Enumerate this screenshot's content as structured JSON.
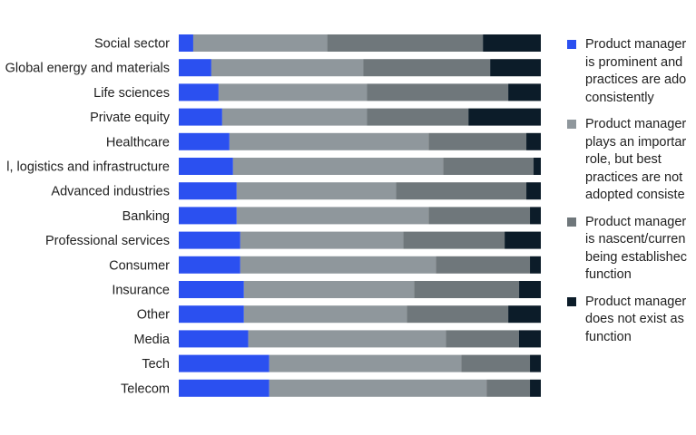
{
  "colors": {
    "prominent": "#2b50f0",
    "important": "#8f979c",
    "nascent": "#6f777b",
    "none": "#0c1c29"
  },
  "chart_data": {
    "type": "bar",
    "orientation": "horizontal",
    "stacked": true,
    "normalized": true,
    "categories": [
      "Social sector",
      "Global energy and materials",
      "Life sciences",
      "Private equity",
      "Healthcare",
      "l, logistics and infrastructure",
      "Advanced industries",
      "Banking",
      "Professional services",
      "Consumer",
      "Insurance",
      "Other",
      "Media",
      "Tech",
      "Telecom"
    ],
    "series": [
      {
        "name": "Product manager\nis prominent and\npractices are ado\nconsistently",
        "color": "#2b50f0",
        "values": [
          4,
          9,
          11,
          12,
          14,
          15,
          16,
          16,
          17,
          17,
          18,
          18,
          19,
          25,
          25
        ]
      },
      {
        "name": "Product manager\nplays an importar\nrole, but best\npractices are not\nadopted consiste",
        "color": "#8f979c",
        "values": [
          37,
          42,
          41,
          40,
          55,
          58,
          44,
          53,
          45,
          54,
          47,
          45,
          54,
          53,
          60
        ]
      },
      {
        "name": "Product manager\nis nascent/curren\nbeing establishec\nfunction",
        "color": "#6f777b",
        "values": [
          43,
          35,
          39,
          28,
          27,
          25,
          36,
          28,
          28,
          26,
          29,
          28,
          20,
          19,
          12
        ]
      },
      {
        "name": "Product manager\ndoes not exist as\nfunction",
        "color": "#0c1c29",
        "values": [
          16,
          14,
          9,
          20,
          4,
          2,
          4,
          3,
          10,
          3,
          6,
          9,
          6,
          3,
          3
        ]
      }
    ],
    "xlim": [
      0,
      100
    ],
    "grid": false,
    "legend": "right"
  }
}
